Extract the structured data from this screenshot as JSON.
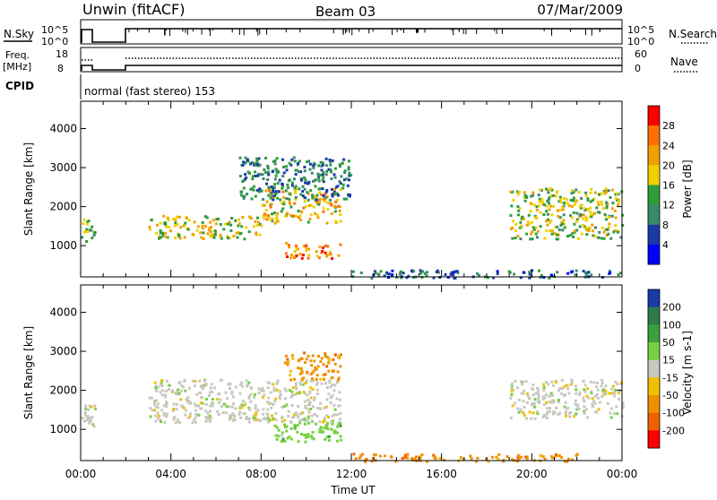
{
  "header": {
    "station": "Unwin (fitACF)",
    "beam": "Beam 03",
    "date": "07/Mar/2009"
  },
  "status_panels": {
    "nsky_label": "N.Sky",
    "nsearch_label": "N.Search",
    "count_ticks": [
      "10^5",
      "10^0"
    ],
    "freq_label_1": "Freq.",
    "freq_label_2": "[MHz]",
    "freq_ticks": [
      "18",
      "8"
    ],
    "nave_label": "Nave",
    "nave_ticks": [
      "60",
      "0"
    ],
    "cpid_label": "CPID",
    "cpid_text": "normal (fast stereo) 153"
  },
  "chart_data": [
    {
      "type": "heatmap",
      "name": "power",
      "ylabel": "Slant Range [km]",
      "y_ticks": [
        1000,
        2000,
        3000,
        4000
      ],
      "ylim": [
        200,
        4700
      ],
      "colorbar": {
        "label": "Power [dB]",
        "ticks": [
          "28",
          "24",
          "20",
          "16",
          "12",
          "8",
          "4"
        ],
        "colors": [
          "#ff0000",
          "#ff7000",
          "#f0a000",
          "#f0d000",
          "#2e9c3a",
          "#3a8a6a",
          "#1a3aa8",
          "#0000ff"
        ]
      },
      "regions": [
        {
          "t": [
            0.0,
            0.6
          ],
          "r": [
            1100,
            1700
          ],
          "level": 12
        },
        {
          "t": [
            3.0,
            8.0
          ],
          "r": [
            1200,
            1800
          ],
          "level": 16
        },
        {
          "t": [
            8.0,
            11.5
          ],
          "r": [
            1600,
            2500
          ],
          "level": 18
        },
        {
          "t": [
            7.0,
            12.0
          ],
          "r": [
            2200,
            3300
          ],
          "level": 8
        },
        {
          "t": [
            9.0,
            11.5
          ],
          "r": [
            700,
            1100
          ],
          "level": 22
        },
        {
          "t": [
            19.0,
            24.0
          ],
          "r": [
            1200,
            2500
          ],
          "level": 14
        },
        {
          "t": [
            12.0,
            24.0
          ],
          "r": [
            200,
            400
          ],
          "level": 6
        }
      ]
    },
    {
      "type": "heatmap",
      "name": "velocity",
      "ylabel": "Slant Range [km]",
      "y_ticks": [
        1000,
        2000,
        3000,
        4000
      ],
      "ylim": [
        200,
        4700
      ],
      "colorbar": {
        "label": "Velocity [m s-1]",
        "ticks": [
          "200",
          "100",
          "50",
          "15",
          "-15",
          "-50",
          "-100",
          "-200"
        ],
        "colors": [
          "#1a3aa8",
          "#2e7a4a",
          "#3aa040",
          "#78d040",
          "#c8c8c0",
          "#f0c000",
          "#f09000",
          "#f06000",
          "#ff0000"
        ]
      },
      "regions": [
        {
          "t": [
            0.0,
            0.6
          ],
          "r": [
            1100,
            1700
          ],
          "v": 0
        },
        {
          "t": [
            3.0,
            11.5
          ],
          "r": [
            1200,
            2300
          ],
          "v": 0
        },
        {
          "t": [
            9.0,
            11.5
          ],
          "r": [
            2300,
            3000
          ],
          "v": -40
        },
        {
          "t": [
            8.5,
            11.5
          ],
          "r": [
            700,
            1200
          ],
          "v": 40
        },
        {
          "t": [
            19.0,
            24.0
          ],
          "r": [
            1300,
            2300
          ],
          "v": 0
        },
        {
          "t": [
            12.0,
            22.0
          ],
          "r": [
            200,
            400
          ],
          "v": -30
        }
      ]
    }
  ],
  "x_axis": {
    "label": "Time UT",
    "ticks": [
      "00:00",
      "04:00",
      "08:00",
      "12:00",
      "16:00",
      "20:00",
      "00:00"
    ]
  }
}
